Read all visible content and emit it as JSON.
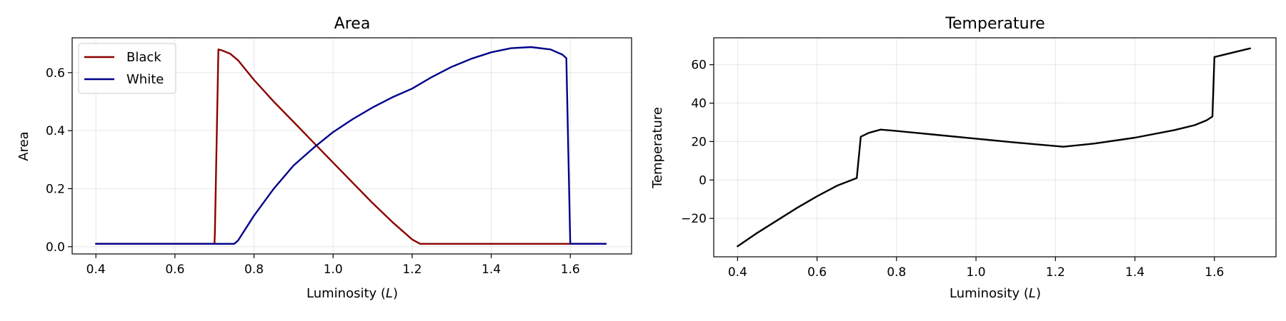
{
  "chart_data": [
    {
      "type": "line",
      "title": "Area",
      "xlabel": "Luminosity ",
      "xlabel_symbol": "L",
      "ylabel": "Area",
      "xlim": [
        0.34,
        1.755
      ],
      "ylim": [
        -0.025,
        0.72
      ],
      "xticks": [
        0.4,
        0.6,
        0.8,
        1.0,
        1.2,
        1.4,
        1.6
      ],
      "xtick_labels": [
        "0.4",
        "0.6",
        "0.8",
        "1.0",
        "1.2",
        "1.4",
        "1.6"
      ],
      "yticks": [
        0.0,
        0.2,
        0.4,
        0.6
      ],
      "ytick_labels": [
        "0.0",
        "0.2",
        "0.4",
        "0.6"
      ],
      "grid": true,
      "legend_position": "upper-left",
      "series": [
        {
          "name": "Black",
          "color": "#8b0000",
          "x": [
            0.4,
            0.7,
            0.701,
            0.71,
            0.72,
            0.74,
            0.76,
            0.8,
            0.85,
            0.9,
            0.95,
            1.0,
            1.05,
            1.1,
            1.15,
            1.2,
            1.22,
            1.3,
            1.4,
            1.5,
            1.6,
            1.69
          ],
          "y": [
            0.01,
            0.01,
            0.05,
            0.68,
            0.676,
            0.665,
            0.642,
            0.575,
            0.5,
            0.43,
            0.36,
            0.29,
            0.22,
            0.15,
            0.085,
            0.025,
            0.01,
            0.01,
            0.01,
            0.01,
            0.01,
            0.01
          ]
        },
        {
          "name": "White",
          "color": "#00008b",
          "x": [
            0.4,
            0.75,
            0.76,
            0.8,
            0.85,
            0.9,
            0.95,
            1.0,
            1.05,
            1.1,
            1.15,
            1.2,
            1.25,
            1.3,
            1.35,
            1.4,
            1.45,
            1.5,
            1.55,
            1.58,
            1.59,
            1.6,
            1.69
          ],
          "y": [
            0.01,
            0.01,
            0.022,
            0.107,
            0.2,
            0.28,
            0.34,
            0.395,
            0.44,
            0.48,
            0.515,
            0.545,
            0.585,
            0.62,
            0.648,
            0.67,
            0.684,
            0.688,
            0.68,
            0.662,
            0.65,
            0.01,
            0.01
          ]
        }
      ]
    },
    {
      "type": "line",
      "title": "Temperature",
      "xlabel": "Luminosity ",
      "xlabel_symbol": "L",
      "ylabel": "Temperature",
      "xlim": [
        0.34,
        1.755
      ],
      "ylim": [
        -40,
        74
      ],
      "xticks": [
        0.4,
        0.6,
        0.8,
        1.0,
        1.2,
        1.4,
        1.6
      ],
      "xtick_labels": [
        "0.4",
        "0.6",
        "0.8",
        "1.0",
        "1.2",
        "1.4",
        "1.6"
      ],
      "yticks": [
        -20,
        0,
        20,
        40,
        60
      ],
      "ytick_labels": [
        "−20",
        "0",
        "20",
        "40",
        "60"
      ],
      "grid": true,
      "series": [
        {
          "color": "#000000",
          "x": [
            0.4,
            0.45,
            0.5,
            0.55,
            0.6,
            0.65,
            0.7,
            0.71,
            0.73,
            0.76,
            0.8,
            0.9,
            1.0,
            1.1,
            1.22,
            1.3,
            1.4,
            1.5,
            1.55,
            1.58,
            1.595,
            1.6,
            1.69
          ],
          "y": [
            -34.5,
            -27.5,
            -21,
            -14.5,
            -8.5,
            -3,
            1,
            22.5,
            24.5,
            26.2,
            25.5,
            23.5,
            21.5,
            19.5,
            17.3,
            19,
            22,
            26,
            28.5,
            31,
            33,
            64,
            68.5
          ]
        }
      ]
    }
  ]
}
